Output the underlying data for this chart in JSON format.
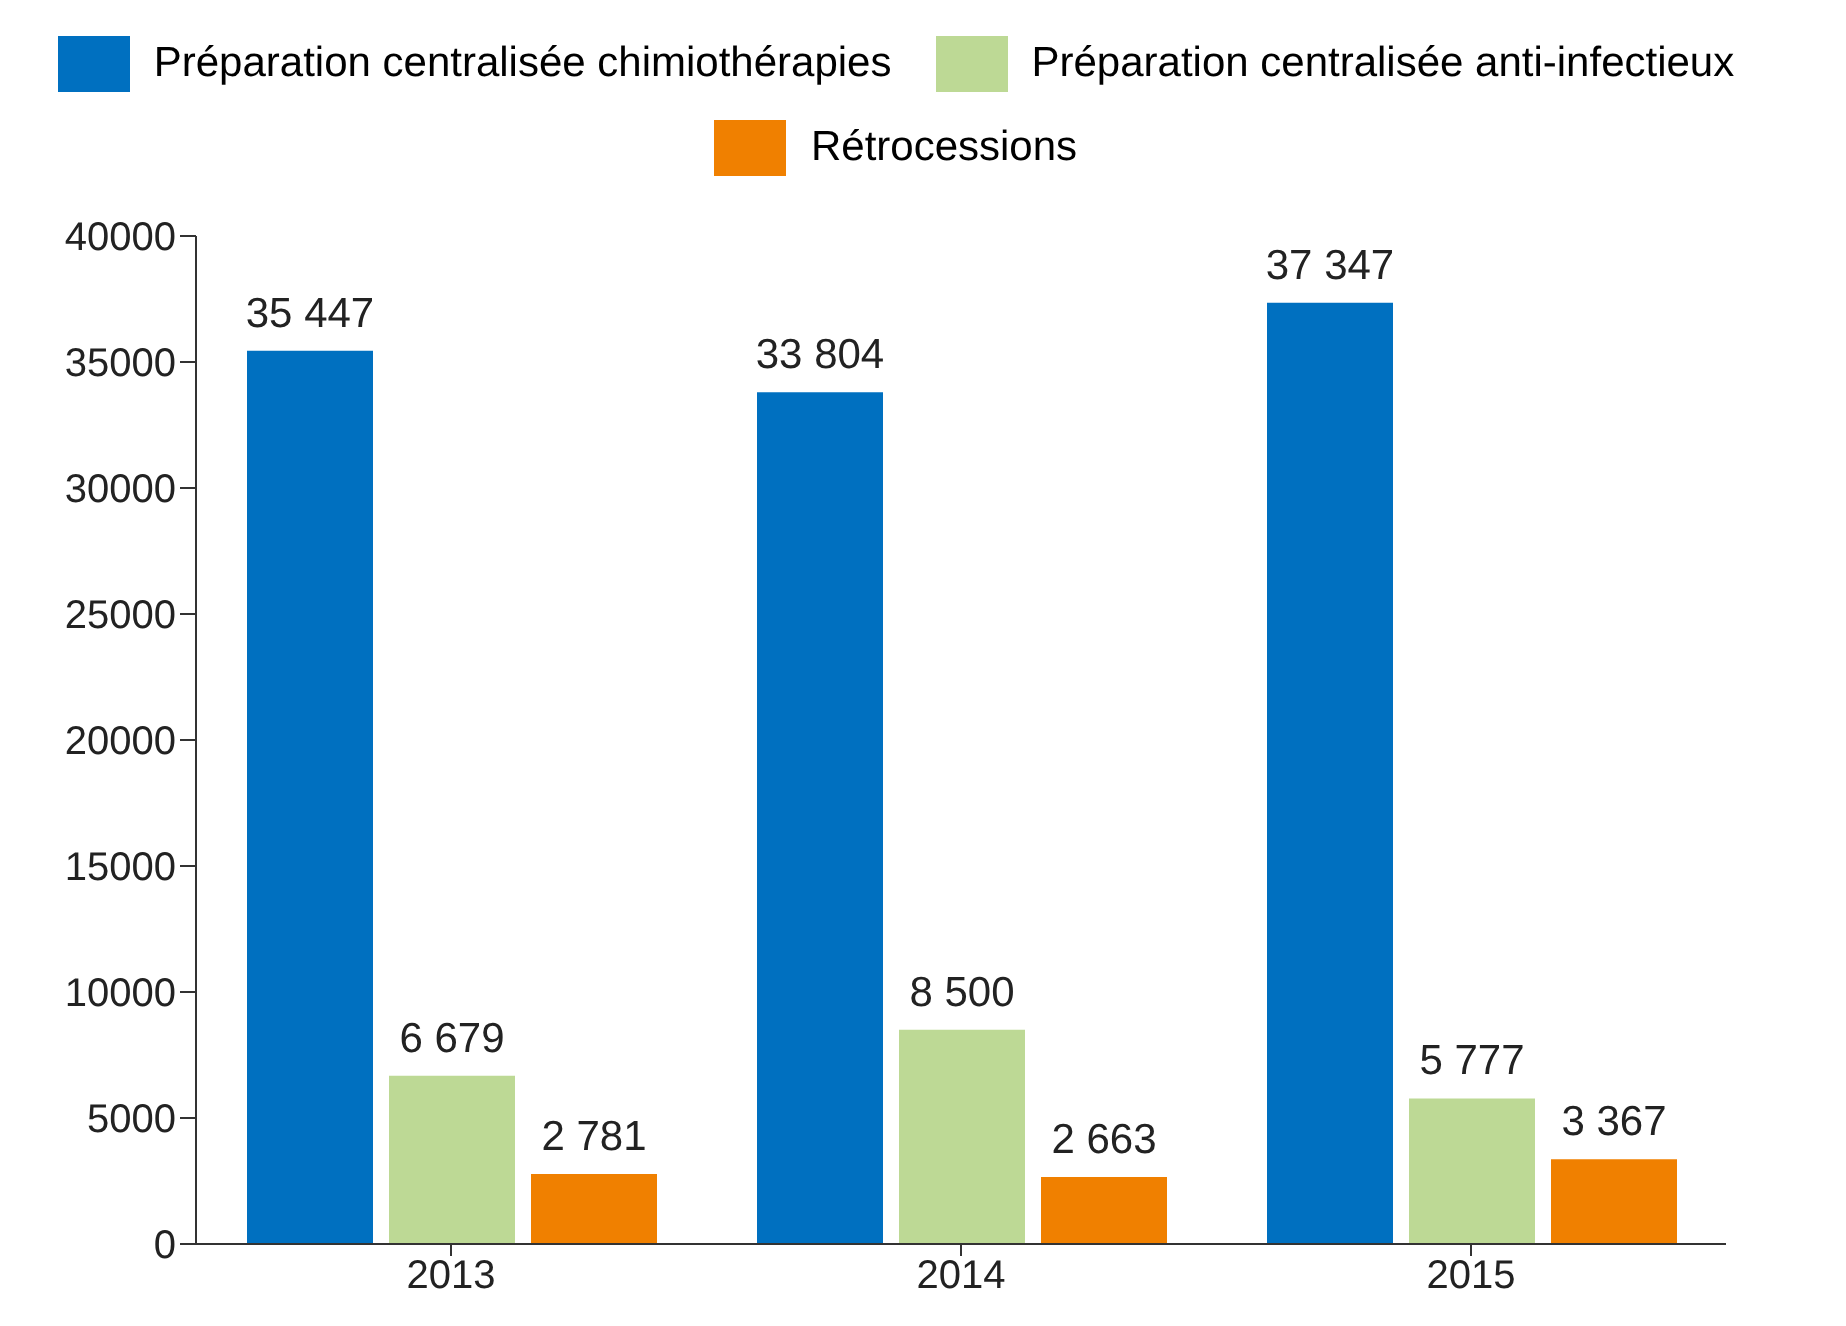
{
  "chart_data": {
    "type": "bar",
    "categories": [
      "2013",
      "2014",
      "2015"
    ],
    "series": [
      {
        "name": "Préparation centralisée chimiothérapies",
        "color": "#0070c0",
        "values": [
          35447,
          33804,
          37347
        ],
        "value_labels": [
          "35 447",
          "33 804",
          "37 347"
        ]
      },
      {
        "name": "Préparation centralisée anti-infectieux",
        "color": "#bdd995",
        "values": [
          6679,
          8500,
          5777
        ],
        "value_labels": [
          "6 679",
          "8 500",
          "5 777"
        ]
      },
      {
        "name": "Rétrocessions",
        "color": "#f08000",
        "values": [
          2781,
          2663,
          3367
        ],
        "value_labels": [
          "2 781",
          "2 663",
          "3 367"
        ]
      }
    ],
    "ylim": [
      0,
      40000
    ],
    "yticks": [
      0,
      5000,
      10000,
      15000,
      20000,
      25000,
      30000,
      35000,
      40000
    ],
    "grid": false,
    "legend": "top"
  }
}
